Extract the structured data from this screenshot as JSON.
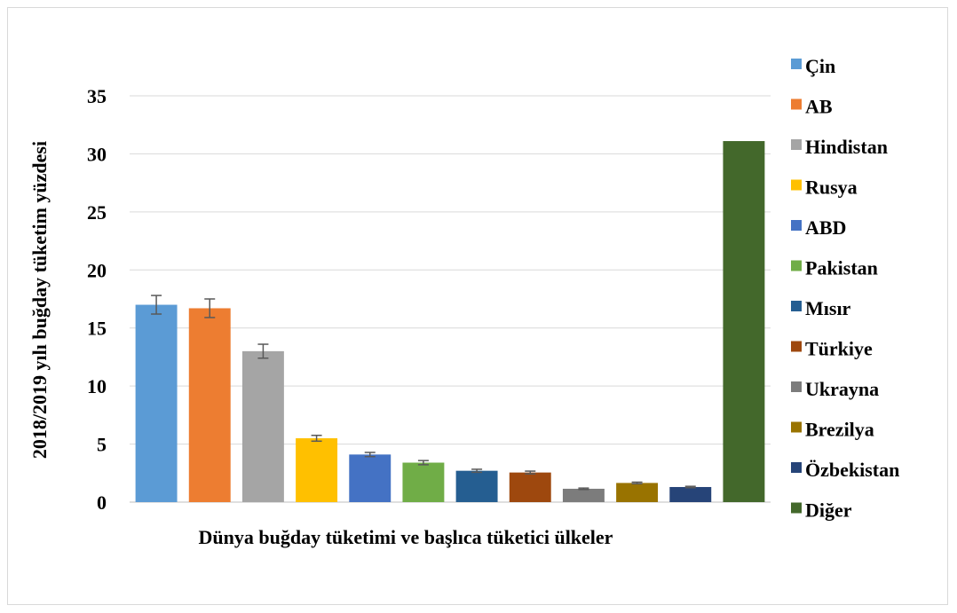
{
  "chart_data": {
    "type": "bar",
    "title": "",
    "xlabel": "Dünya buğday tüketimi ve başlıca tüketici ülkeler",
    "ylabel": "2018/2019 yılı buğday tüketim yüzdesi",
    "ylim": [
      0,
      35
    ],
    "yticks": [
      "0",
      "5",
      "10",
      "15",
      "20",
      "25",
      "30",
      "35"
    ],
    "grid": true,
    "legend_position": "right",
    "error_bars": true,
    "categories": [
      "Çin",
      "AB",
      "Hindistan",
      "Rusya",
      "ABD",
      "Pakistan",
      "Mısır",
      "Türkiye",
      "Ukrayna",
      "Brezilya",
      "Özbekistan",
      "Diğer"
    ],
    "values": [
      17.0,
      16.7,
      13.0,
      5.5,
      4.1,
      3.4,
      2.7,
      2.55,
      1.15,
      1.65,
      1.3,
      31.1
    ],
    "errors": [
      0.8,
      0.8,
      0.6,
      0.25,
      0.18,
      0.18,
      0.13,
      0.12,
      0.06,
      0.07,
      0.06,
      0
    ],
    "colors": [
      "#5B9BD5",
      "#ED7D31",
      "#A5A5A5",
      "#FFC000",
      "#4472C4",
      "#70AD47",
      "#255E91",
      "#9E480E",
      "#7C7C7C",
      "#997300",
      "#264478",
      "#43682B"
    ]
  }
}
